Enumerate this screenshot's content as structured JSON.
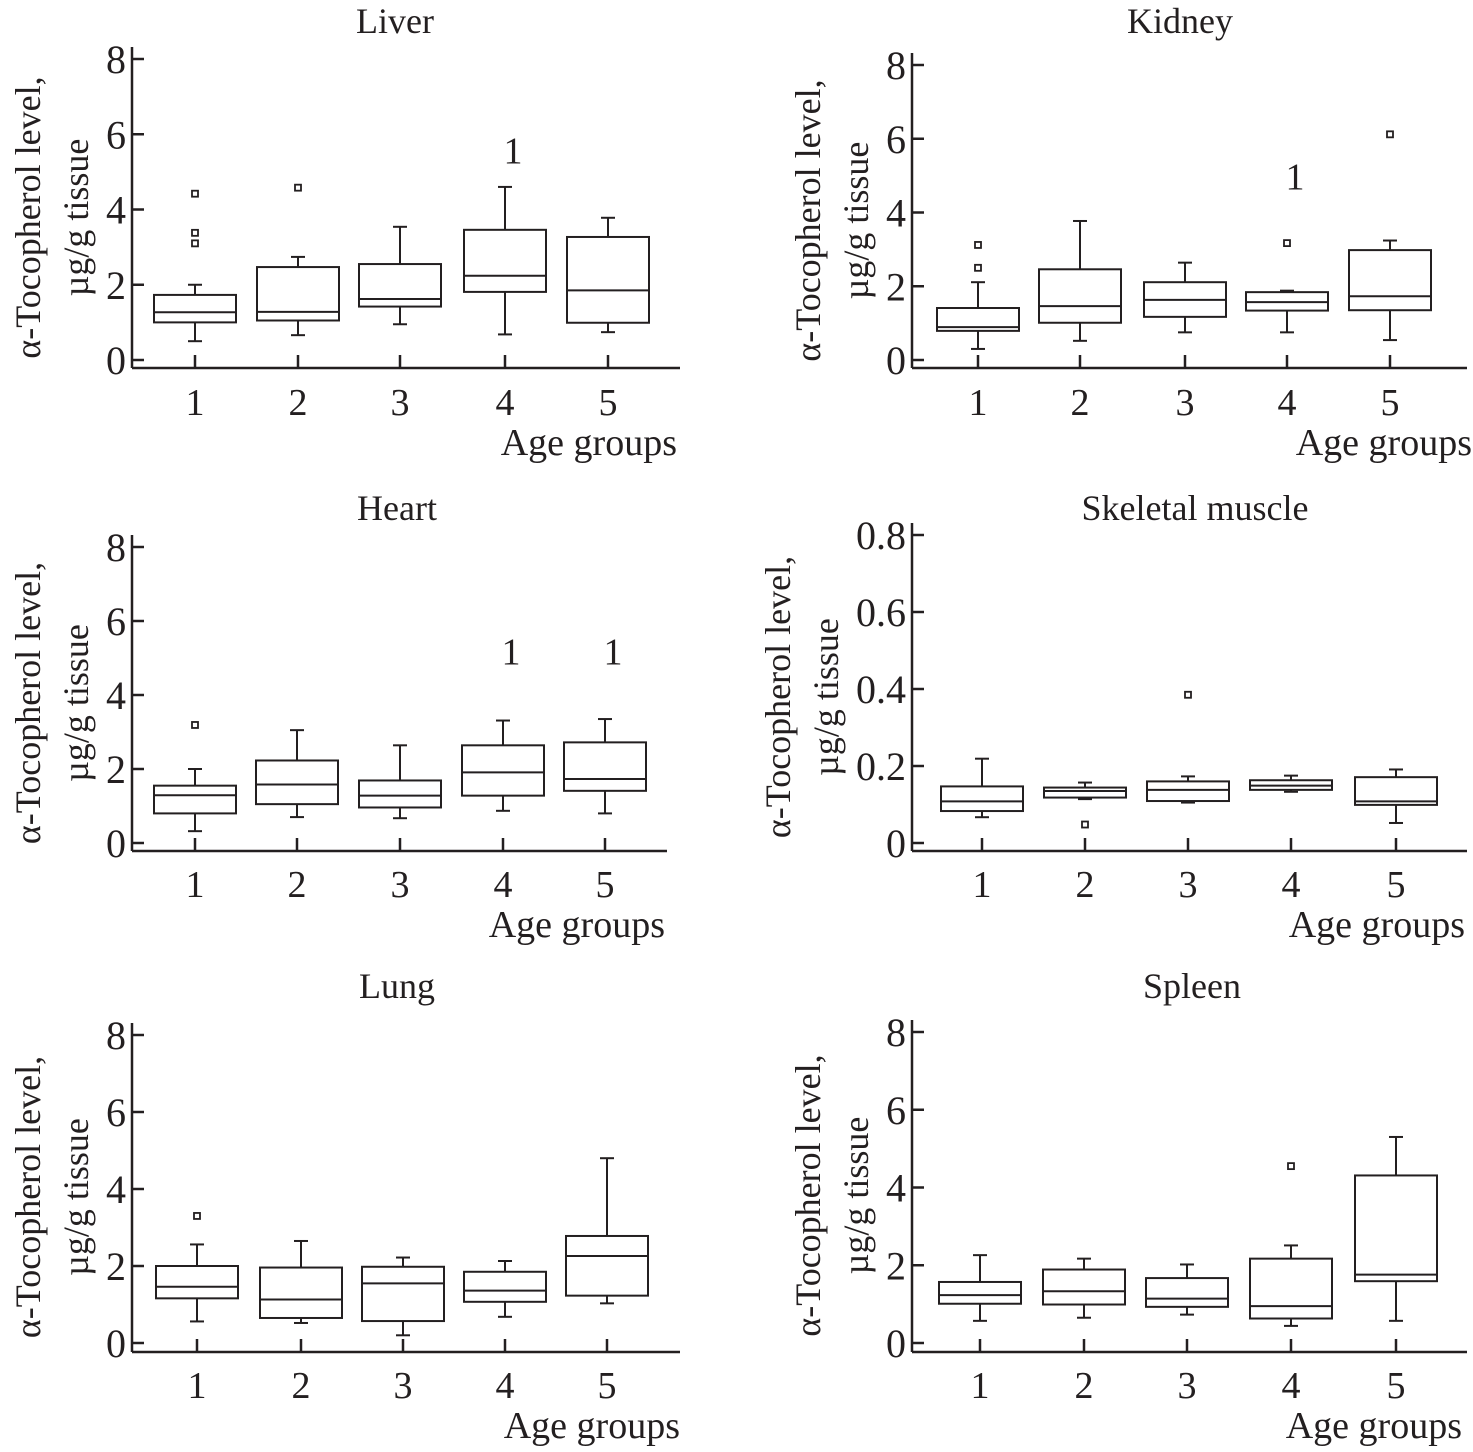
{
  "chart_data": [
    {
      "type": "box",
      "title": "Liver",
      "xlabel": "Age groups",
      "ylabel_line1": "α-Tocopherol level,",
      "ylabel_line2": "µg/g tissue",
      "categories": [
        "1",
        "2",
        "3",
        "4",
        "5"
      ],
      "ylim": [
        0,
        8
      ],
      "yticks": [
        0,
        2,
        4,
        6,
        8
      ],
      "ytick_labels": [
        "0",
        "2",
        "4",
        "6",
        "8"
      ],
      "boxes": [
        {
          "whisker_low": 0.5,
          "q1": 1.0,
          "median": 1.27,
          "q3": 1.73,
          "whisker_high": 2.0,
          "outliers": [
            3.1,
            3.38,
            4.42
          ]
        },
        {
          "whisker_low": 0.66,
          "q1": 1.05,
          "median": 1.28,
          "q3": 2.47,
          "whisker_high": 2.74,
          "outliers": [
            4.58
          ]
        },
        {
          "whisker_low": 0.95,
          "q1": 1.42,
          "median": 1.62,
          "q3": 2.55,
          "whisker_high": 3.54,
          "outliers": []
        },
        {
          "whisker_low": 0.68,
          "q1": 1.81,
          "median": 2.24,
          "q3": 3.46,
          "whisker_high": 4.6,
          "outliers": []
        },
        {
          "whisker_low": 0.74,
          "q1": 0.99,
          "median": 1.85,
          "q3": 3.27,
          "whisker_high": 3.78,
          "outliers": []
        }
      ],
      "annotations": [
        {
          "group": 4,
          "text": "1",
          "y": 5.6
        }
      ]
    },
    {
      "type": "box",
      "title": "Kidney",
      "xlabel": "Age groups",
      "ylabel_line1": "α-Tocopherol level,",
      "ylabel_line2": "µg/g tissue",
      "categories": [
        "1",
        "2",
        "3",
        "4",
        "5"
      ],
      "ylim": [
        0,
        8
      ],
      "yticks": [
        0,
        2,
        4,
        6,
        8
      ],
      "ytick_labels": [
        "0",
        "2",
        "4",
        "6",
        "8"
      ],
      "boxes": [
        {
          "whisker_low": 0.3,
          "q1": 0.79,
          "median": 0.89,
          "q3": 1.41,
          "whisker_high": 2.11,
          "outliers": [
            2.5,
            3.12
          ]
        },
        {
          "whisker_low": 0.52,
          "q1": 1.01,
          "median": 1.46,
          "q3": 2.46,
          "whisker_high": 3.77,
          "outliers": []
        },
        {
          "whisker_low": 0.75,
          "q1": 1.17,
          "median": 1.63,
          "q3": 2.11,
          "whisker_high": 2.64,
          "outliers": []
        },
        {
          "whisker_low": 0.75,
          "q1": 1.34,
          "median": 1.57,
          "q3": 1.84,
          "whisker_high": 1.88,
          "outliers": [
            3.17
          ]
        },
        {
          "whisker_low": 0.54,
          "q1": 1.35,
          "median": 1.73,
          "q3": 2.98,
          "whisker_high": 3.24,
          "outliers": [
            6.12
          ]
        }
      ],
      "annotations": [
        {
          "group": 4,
          "text": "1",
          "y": 5.0
        }
      ]
    },
    {
      "type": "box",
      "title": "Heart",
      "xlabel": "Age groups",
      "ylabel_line1": "α-Tocopherol level,",
      "ylabel_line2": "µg/g tissue",
      "categories": [
        "1",
        "2",
        "3",
        "4",
        "5"
      ],
      "ylim": [
        0,
        8
      ],
      "yticks": [
        0,
        2,
        4,
        6,
        8
      ],
      "ytick_labels": [
        "0",
        "2",
        "4",
        "6",
        "8"
      ],
      "boxes": [
        {
          "whisker_low": 0.32,
          "q1": 0.8,
          "median": 1.29,
          "q3": 1.55,
          "whisker_high": 2.0,
          "outliers": [
            3.19
          ]
        },
        {
          "whisker_low": 0.7,
          "q1": 1.05,
          "median": 1.58,
          "q3": 2.23,
          "whisker_high": 3.05,
          "outliers": []
        },
        {
          "whisker_low": 0.67,
          "q1": 0.96,
          "median": 1.28,
          "q3": 1.69,
          "whisker_high": 2.64,
          "outliers": []
        },
        {
          "whisker_low": 0.87,
          "q1": 1.28,
          "median": 1.91,
          "q3": 2.64,
          "whisker_high": 3.31,
          "outliers": []
        },
        {
          "whisker_low": 0.8,
          "q1": 1.41,
          "median": 1.73,
          "q3": 2.72,
          "whisker_high": 3.35,
          "outliers": []
        }
      ],
      "annotations": [
        {
          "group": 4,
          "text": "1",
          "y": 5.2
        },
        {
          "group": 5,
          "text": "1",
          "y": 5.2
        }
      ]
    },
    {
      "type": "box",
      "title": "Skeletal muscle",
      "xlabel": "Age groups",
      "ylabel_line1": "α-Tocopherol level,",
      "ylabel_line2": "µg/g tissue",
      "categories": [
        "1",
        "2",
        "3",
        "4",
        "5"
      ],
      "ylim": [
        0,
        0.8
      ],
      "yticks": [
        0,
        0.2,
        0.4,
        0.6,
        0.8
      ],
      "ytick_labels": [
        "0",
        "0.2",
        "0.4",
        "0.6",
        "0.8"
      ],
      "boxes": [
        {
          "whisker_low": 0.067,
          "q1": 0.083,
          "median": 0.108,
          "q3": 0.147,
          "whisker_high": 0.219,
          "outliers": []
        },
        {
          "whisker_low": 0.114,
          "q1": 0.118,
          "median": 0.135,
          "q3": 0.144,
          "whisker_high": 0.157,
          "outliers": [
            0.048
          ]
        },
        {
          "whisker_low": 0.105,
          "q1": 0.109,
          "median": 0.138,
          "q3": 0.16,
          "whisker_high": 0.173,
          "outliers": [
            0.385
          ]
        },
        {
          "whisker_low": 0.133,
          "q1": 0.138,
          "median": 0.149,
          "q3": 0.163,
          "whisker_high": 0.175,
          "outliers": []
        },
        {
          "whisker_low": 0.052,
          "q1": 0.099,
          "median": 0.108,
          "q3": 0.171,
          "whisker_high": 0.191,
          "outliers": []
        }
      ],
      "annotations": []
    },
    {
      "type": "box",
      "title": "Lung",
      "xlabel": "Age groups",
      "ylabel_line1": "α-Tocopherol level,",
      "ylabel_line2": "µg/g tissue",
      "categories": [
        "1",
        "2",
        "3",
        "4",
        "5"
      ],
      "ylim": [
        0,
        8
      ],
      "yticks": [
        0,
        2,
        4,
        6,
        8
      ],
      "ytick_labels": [
        "0",
        "2",
        "4",
        "6",
        "8"
      ],
      "boxes": [
        {
          "whisker_low": 0.56,
          "q1": 1.16,
          "median": 1.46,
          "q3": 2.0,
          "whisker_high": 2.56,
          "outliers": [
            3.3
          ]
        },
        {
          "whisker_low": 0.52,
          "q1": 0.65,
          "median": 1.13,
          "q3": 1.96,
          "whisker_high": 2.65,
          "outliers": []
        },
        {
          "whisker_low": 0.2,
          "q1": 0.57,
          "median": 1.55,
          "q3": 1.98,
          "whisker_high": 2.22,
          "outliers": []
        },
        {
          "whisker_low": 0.68,
          "q1": 1.07,
          "median": 1.36,
          "q3": 1.85,
          "whisker_high": 2.13,
          "outliers": []
        },
        {
          "whisker_low": 1.03,
          "q1": 1.23,
          "median": 2.26,
          "q3": 2.78,
          "whisker_high": 4.8,
          "outliers": []
        }
      ],
      "annotations": []
    },
    {
      "type": "box",
      "title": "Spleen",
      "xlabel": "Age groups",
      "ylabel_line1": "α-Tocopherol level,",
      "ylabel_line2": "µg/g tissue",
      "categories": [
        "1",
        "2",
        "3",
        "4",
        "5"
      ],
      "ylim": [
        0,
        8
      ],
      "yticks": [
        0,
        2,
        4,
        6,
        8
      ],
      "ytick_labels": [
        "0",
        "2",
        "4",
        "6",
        "8"
      ],
      "boxes": [
        {
          "whisker_low": 0.57,
          "q1": 1.01,
          "median": 1.23,
          "q3": 1.57,
          "whisker_high": 2.26,
          "outliers": []
        },
        {
          "whisker_low": 0.65,
          "q1": 0.99,
          "median": 1.33,
          "q3": 1.89,
          "whisker_high": 2.17,
          "outliers": []
        },
        {
          "whisker_low": 0.73,
          "q1": 0.93,
          "median": 1.14,
          "q3": 1.67,
          "whisker_high": 2.02,
          "outliers": []
        },
        {
          "whisker_low": 0.44,
          "q1": 0.63,
          "median": 0.95,
          "q3": 2.17,
          "whisker_high": 2.51,
          "outliers": [
            4.55
          ]
        },
        {
          "whisker_low": 0.57,
          "q1": 1.59,
          "median": 1.76,
          "q3": 4.31,
          "whisker_high": 5.3,
          "outliers": []
        }
      ],
      "annotations": []
    }
  ]
}
